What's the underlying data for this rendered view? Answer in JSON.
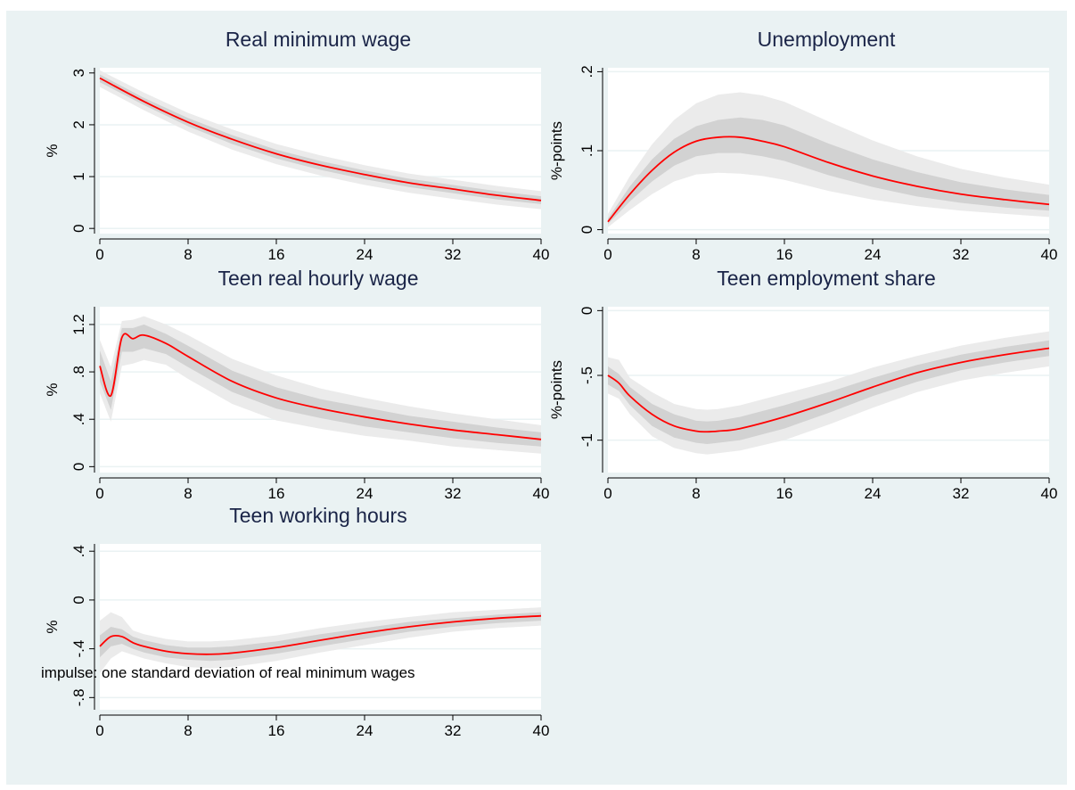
{
  "note": "impulse: one standard deviation of real minimum wages",
  "colors": {
    "background": "#eaf2f3",
    "plot_region": "#ffffff",
    "outer_band": "#ebebeb",
    "inner_band": "#d2d2d2",
    "line": "#ff0000",
    "grid": "#eaf2f3",
    "title": "#1a2447",
    "axis": "#000000"
  },
  "chart_data": [
    {
      "type": "line",
      "title": "Real minimum wage",
      "xlabel": "",
      "ylabel": "%",
      "xlim": [
        0,
        40
      ],
      "ylim": [
        -0.1,
        3.1
      ],
      "xticks": [
        0,
        8,
        16,
        24,
        32,
        40
      ],
      "xtick_labels": [
        "0",
        "8",
        "16",
        "24",
        "32",
        "40"
      ],
      "yticks": [
        0,
        1,
        2,
        3
      ],
      "ytick_labels": [
        "0",
        "1",
        "2",
        "3"
      ],
      "grid": true,
      "x": [
        0,
        4,
        8,
        12,
        16,
        20,
        24,
        28,
        32,
        36,
        40
      ],
      "series": [
        {
          "values": [
            2.9,
            2.45,
            2.05,
            1.72,
            1.44,
            1.22,
            1.04,
            0.88,
            0.76,
            0.64,
            0.54
          ],
          "band_inner": {
            "lower": [
              2.82,
              2.38,
              1.97,
              1.63,
              1.35,
              1.13,
              0.95,
              0.8,
              0.68,
              0.56,
              0.47
            ],
            "upper": [
              2.97,
              2.52,
              2.13,
              1.8,
              1.52,
              1.3,
              1.12,
              0.96,
              0.84,
              0.72,
              0.62
            ]
          },
          "band_outer": {
            "lower": [
              2.73,
              2.28,
              1.87,
              1.52,
              1.24,
              1.02,
              0.84,
              0.69,
              0.57,
              0.46,
              0.37
            ],
            "upper": [
              3.05,
              2.62,
              2.23,
              1.91,
              1.63,
              1.41,
              1.22,
              1.06,
              0.94,
              0.82,
              0.72
            ]
          }
        }
      ]
    },
    {
      "type": "line",
      "title": "Unemployment",
      "xlabel": "",
      "ylabel": "%-points",
      "xlim": [
        0,
        40
      ],
      "ylim": [
        -0.005,
        0.205
      ],
      "xticks": [
        0,
        8,
        16,
        24,
        32,
        40
      ],
      "xtick_labels": [
        "0",
        "8",
        "16",
        "24",
        "32",
        "40"
      ],
      "yticks": [
        0,
        0.1,
        0.2
      ],
      "ytick_labels": [
        "0",
        ".1",
        ".2"
      ],
      "grid": true,
      "x": [
        0,
        2,
        4,
        6,
        8,
        10,
        12,
        14,
        16,
        20,
        24,
        28,
        32,
        36,
        40
      ],
      "series": [
        {
          "values": [
            0.01,
            0.045,
            0.075,
            0.098,
            0.112,
            0.117,
            0.117,
            0.112,
            0.105,
            0.085,
            0.068,
            0.055,
            0.045,
            0.038,
            0.032
          ],
          "band_inner": {
            "lower": [
              0.007,
              0.036,
              0.061,
              0.081,
              0.093,
              0.097,
              0.097,
              0.093,
              0.087,
              0.069,
              0.054,
              0.042,
              0.034,
              0.028,
              0.024
            ],
            "upper": [
              0.014,
              0.055,
              0.089,
              0.115,
              0.131,
              0.139,
              0.142,
              0.139,
              0.132,
              0.109,
              0.089,
              0.073,
              0.06,
              0.051,
              0.044
            ]
          },
          "band_outer": {
            "lower": [
              0.003,
              0.025,
              0.045,
              0.061,
              0.07,
              0.072,
              0.071,
              0.068,
              0.063,
              0.049,
              0.038,
              0.03,
              0.024,
              0.02,
              0.016
            ],
            "upper": [
              0.02,
              0.068,
              0.108,
              0.139,
              0.16,
              0.171,
              0.174,
              0.17,
              0.162,
              0.137,
              0.113,
              0.093,
              0.077,
              0.066,
              0.057
            ]
          }
        }
      ]
    },
    {
      "type": "line",
      "title": "Teen real hourly wage",
      "xlabel": "",
      "ylabel": "%",
      "xlim": [
        0,
        40
      ],
      "ylim": [
        -0.05,
        1.35
      ],
      "xticks": [
        0,
        8,
        16,
        24,
        32,
        40
      ],
      "xtick_labels": [
        "0",
        "8",
        "16",
        "24",
        "32",
        "40"
      ],
      "yticks": [
        0,
        0.4,
        0.8,
        1.2
      ],
      "ytick_labels": [
        "0",
        ".4",
        ".8",
        "1.2"
      ],
      "grid": true,
      "x": [
        0,
        1,
        2,
        3,
        4,
        6,
        8,
        12,
        16,
        20,
        24,
        28,
        32,
        36,
        40
      ],
      "series": [
        {
          "values": [
            0.85,
            0.6,
            1.09,
            1.08,
            1.11,
            1.04,
            0.93,
            0.72,
            0.58,
            0.49,
            0.42,
            0.36,
            0.31,
            0.27,
            0.23
          ],
          "band_inner": {
            "lower": [
              0.72,
              0.48,
              0.97,
              0.97,
              1.0,
              0.95,
              0.84,
              0.63,
              0.49,
              0.41,
              0.34,
              0.29,
              0.24,
              0.2,
              0.17
            ],
            "upper": [
              0.98,
              0.72,
              1.17,
              1.17,
              1.2,
              1.12,
              1.02,
              0.81,
              0.67,
              0.57,
              0.5,
              0.43,
              0.38,
              0.33,
              0.29
            ]
          },
          "band_outer": {
            "lower": [
              0.62,
              0.38,
              0.85,
              0.87,
              0.9,
              0.86,
              0.74,
              0.53,
              0.39,
              0.32,
              0.26,
              0.22,
              0.17,
              0.14,
              0.11
            ],
            "upper": [
              1.07,
              0.84,
              1.23,
              1.24,
              1.27,
              1.2,
              1.11,
              0.91,
              0.77,
              0.66,
              0.58,
              0.51,
              0.45,
              0.4,
              0.35
            ]
          }
        }
      ]
    },
    {
      "type": "line",
      "title": "Teen employment share",
      "xlabel": "",
      "ylabel": "%-points",
      "xlim": [
        0,
        40
      ],
      "ylim": [
        -1.25,
        0.03
      ],
      "xticks": [
        0,
        8,
        16,
        24,
        32,
        40
      ],
      "xtick_labels": [
        "0",
        "8",
        "16",
        "24",
        "32",
        "40"
      ],
      "yticks": [
        -1,
        -0.5,
        0
      ],
      "ytick_labels": [
        "-1",
        "-.5",
        "0"
      ],
      "grid": true,
      "x": [
        0,
        1,
        2,
        4,
        6,
        8,
        9,
        10,
        12,
        16,
        20,
        24,
        28,
        32,
        36,
        40
      ],
      "series": [
        {
          "values": [
            -0.5,
            -0.56,
            -0.66,
            -0.8,
            -0.89,
            -0.93,
            -0.935,
            -0.93,
            -0.91,
            -0.82,
            -0.71,
            -0.59,
            -0.48,
            -0.4,
            -0.34,
            -0.29
          ],
          "band_inner": {
            "lower": [
              -0.57,
              -0.62,
              -0.73,
              -0.89,
              -0.98,
              -1.02,
              -1.03,
              -1.02,
              -1.0,
              -0.91,
              -0.79,
              -0.66,
              -0.55,
              -0.46,
              -0.4,
              -0.35
            ],
            "upper": [
              -0.43,
              -0.49,
              -0.59,
              -0.72,
              -0.8,
              -0.85,
              -0.855,
              -0.85,
              -0.82,
              -0.73,
              -0.63,
              -0.52,
              -0.42,
              -0.34,
              -0.28,
              -0.23
            ]
          },
          "band_outer": {
            "lower": [
              -0.64,
              -0.68,
              -0.8,
              -0.97,
              -1.06,
              -1.1,
              -1.11,
              -1.1,
              -1.08,
              -1.0,
              -0.88,
              -0.75,
              -0.63,
              -0.54,
              -0.48,
              -0.43
            ],
            "upper": [
              -0.36,
              -0.38,
              -0.52,
              -0.63,
              -0.72,
              -0.76,
              -0.765,
              -0.76,
              -0.73,
              -0.64,
              -0.55,
              -0.44,
              -0.35,
              -0.27,
              -0.21,
              -0.16
            ]
          }
        }
      ]
    },
    {
      "type": "line",
      "title": "Teen working hours",
      "xlabel": "",
      "ylabel": "%",
      "xlim": [
        0,
        40
      ],
      "ylim": [
        -0.9,
        0.46
      ],
      "xticks": [
        0,
        8,
        16,
        24,
        32,
        40
      ],
      "xtick_labels": [
        "0",
        "8",
        "16",
        "24",
        "32",
        "40"
      ],
      "yticks": [
        -0.8,
        -0.4,
        0,
        0.4
      ],
      "ytick_labels": [
        "-.8",
        "-.4",
        "0",
        ".4"
      ],
      "grid": true,
      "x": [
        0,
        1,
        2,
        3,
        4,
        6,
        8,
        10,
        12,
        16,
        20,
        24,
        28,
        32,
        36,
        40
      ],
      "series": [
        {
          "values": [
            -0.38,
            -0.3,
            -0.3,
            -0.35,
            -0.38,
            -0.42,
            -0.44,
            -0.445,
            -0.435,
            -0.39,
            -0.33,
            -0.27,
            -0.22,
            -0.18,
            -0.15,
            -0.13
          ],
          "band_inner": {
            "lower": [
              -0.47,
              -0.38,
              -0.36,
              -0.4,
              -0.43,
              -0.47,
              -0.49,
              -0.5,
              -0.49,
              -0.44,
              -0.38,
              -0.32,
              -0.26,
              -0.22,
              -0.19,
              -0.17
            ],
            "upper": [
              -0.29,
              -0.22,
              -0.24,
              -0.3,
              -0.33,
              -0.37,
              -0.39,
              -0.39,
              -0.38,
              -0.34,
              -0.28,
              -0.23,
              -0.18,
              -0.15,
              -0.12,
              -0.1
            ]
          },
          "band_outer": {
            "lower": [
              -0.6,
              -0.48,
              -0.42,
              -0.45,
              -0.48,
              -0.52,
              -0.55,
              -0.56,
              -0.55,
              -0.5,
              -0.43,
              -0.37,
              -0.31,
              -0.26,
              -0.23,
              -0.21
            ],
            "upper": [
              -0.17,
              -0.1,
              -0.14,
              -0.25,
              -0.28,
              -0.32,
              -0.34,
              -0.34,
              -0.33,
              -0.29,
              -0.23,
              -0.18,
              -0.14,
              -0.1,
              -0.08,
              -0.06
            ]
          }
        }
      ]
    }
  ]
}
